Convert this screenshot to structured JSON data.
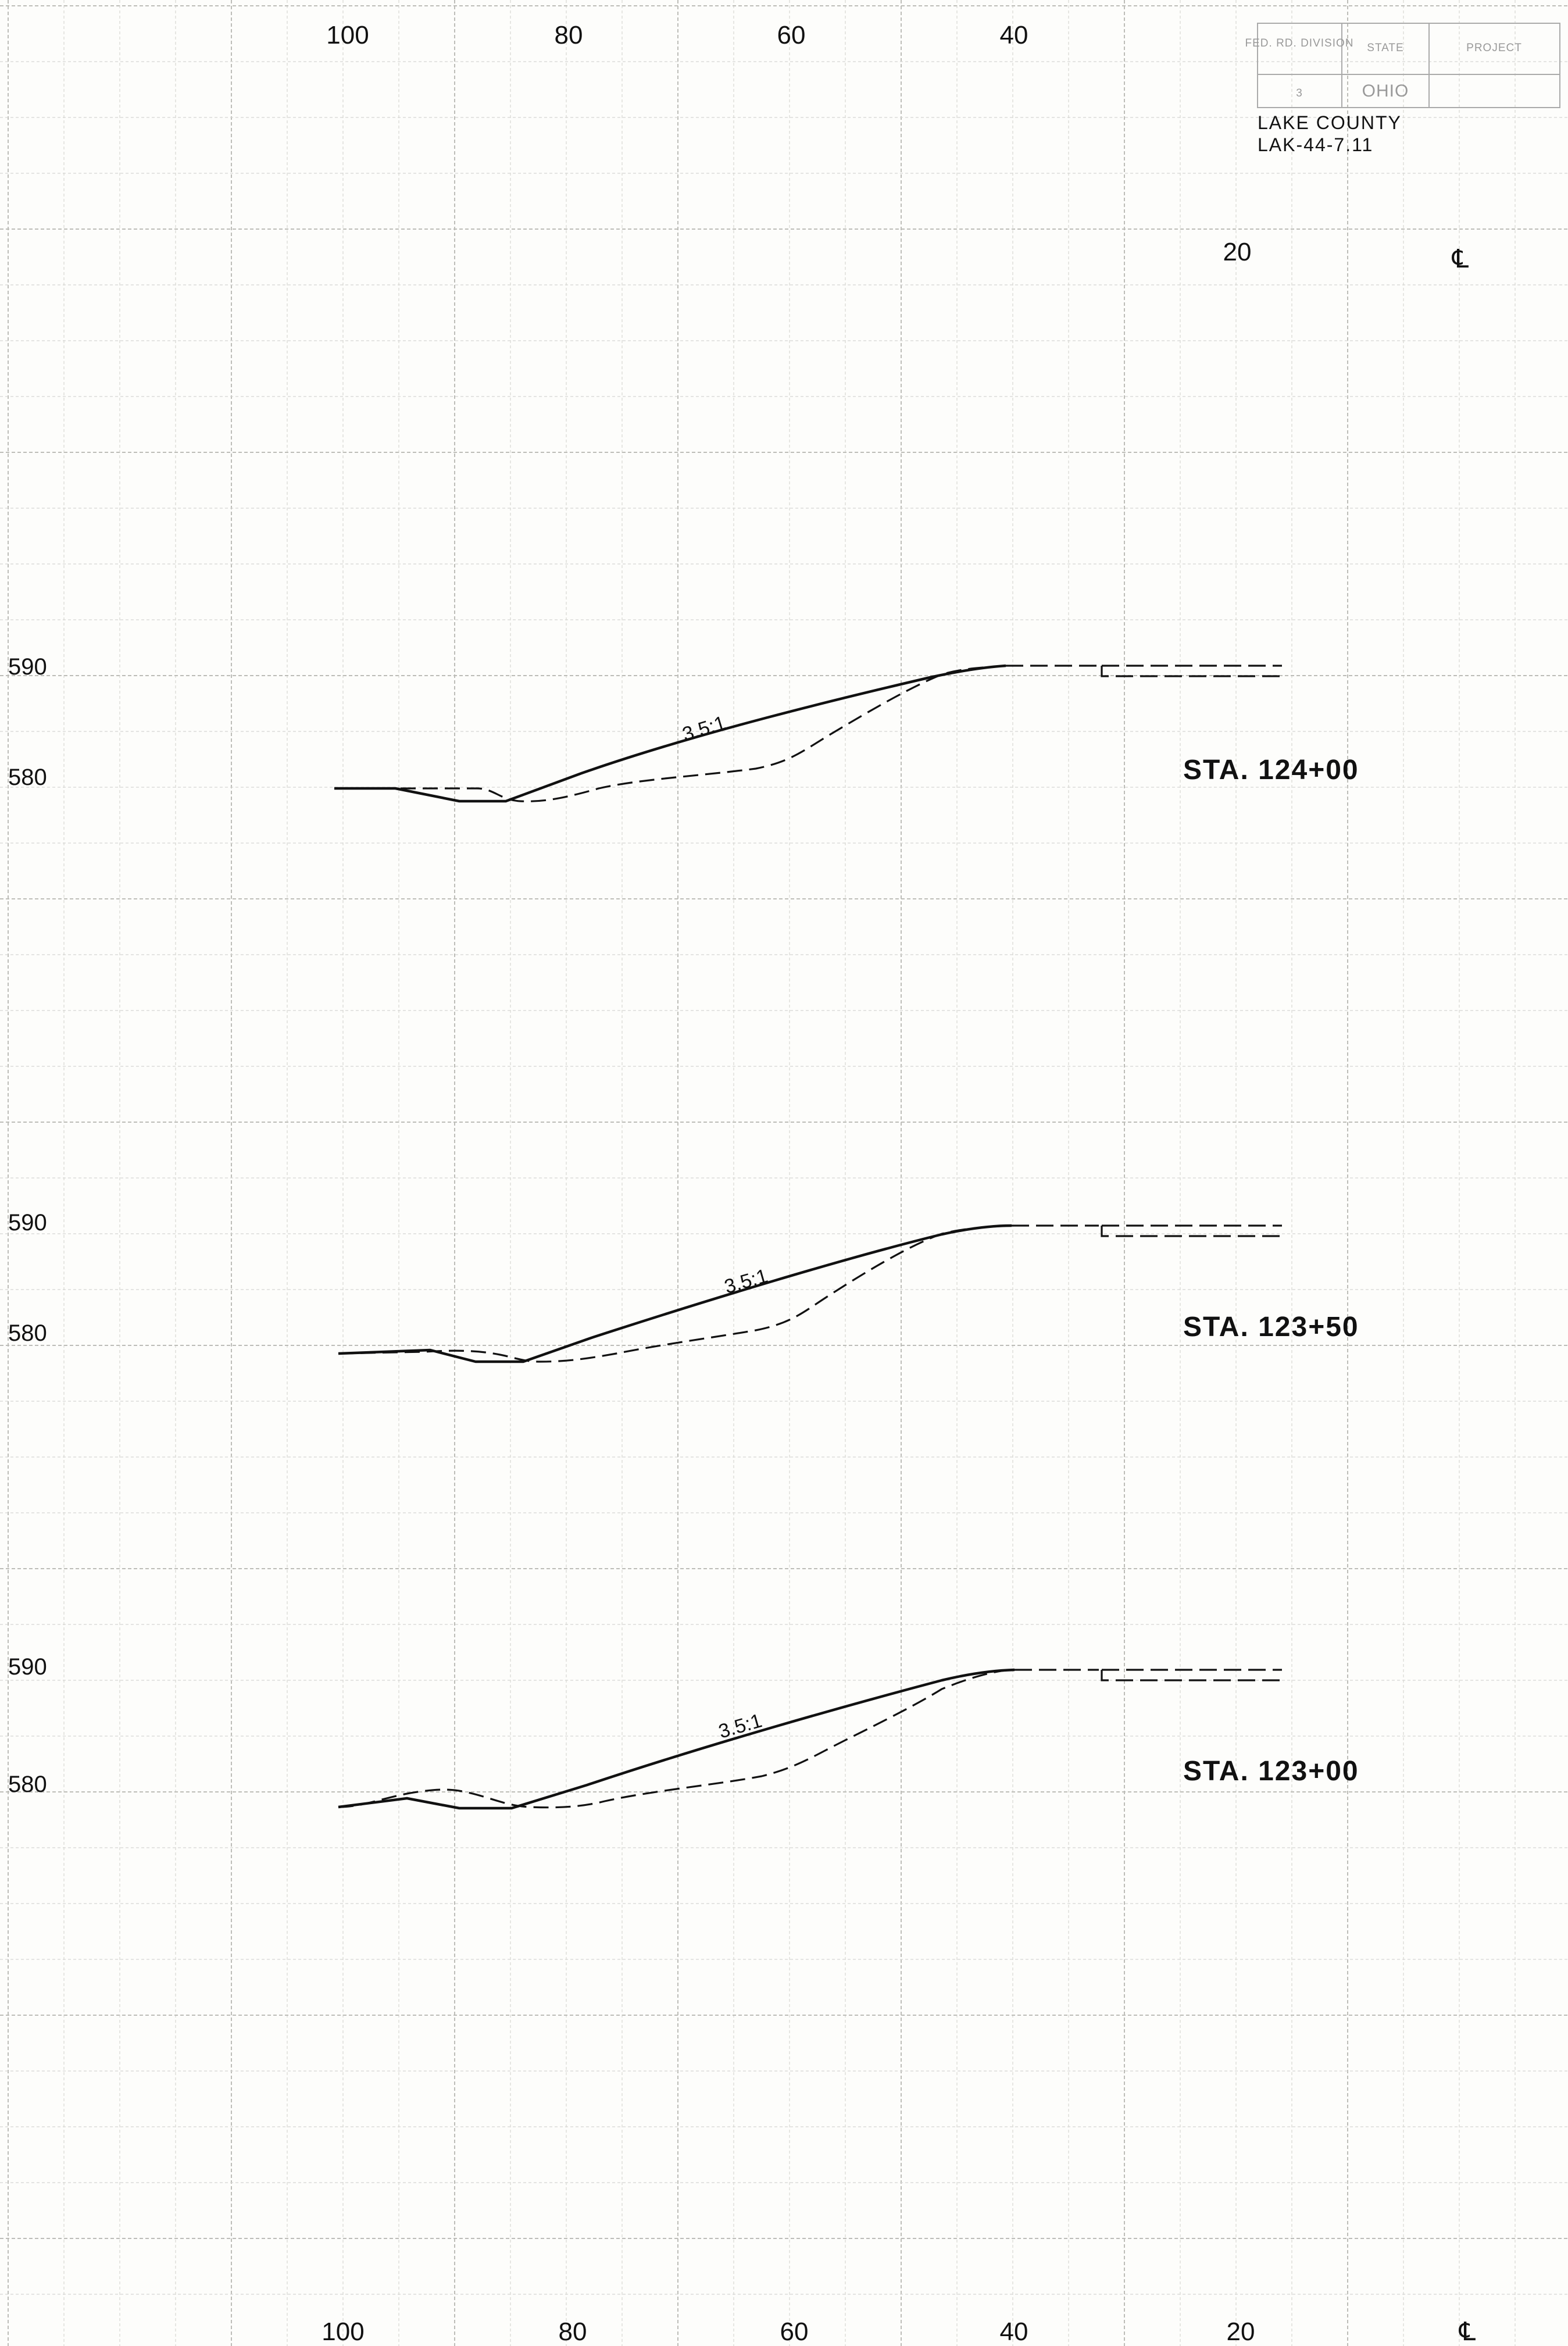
{
  "title_block": {
    "headers": [
      "FED. RD. DIVISION",
      "STATE",
      "PROJECT"
    ],
    "values": [
      "3",
      "OHIO",
      ""
    ]
  },
  "county": "LAKE COUNTY",
  "route": "LAK-44-7.11",
  "top_axis_labels": [
    "100",
    "80",
    "60",
    "40"
  ],
  "second_axis_labels": [
    "20",
    "℄"
  ],
  "bottom_axis_labels": [
    "100",
    "80",
    "60",
    "40",
    "20",
    "℄"
  ],
  "slope_label": "3.5:1",
  "sections": [
    {
      "station": "STA. 124+00",
      "elevations": [
        "590",
        "580"
      ]
    },
    {
      "station": "STA. 123+50",
      "elevations": [
        "590",
        "580"
      ]
    },
    {
      "station": "STA. 123+00",
      "elevations": [
        "590",
        "580"
      ]
    }
  ],
  "legend": {
    "proposed": "solid line",
    "existing": "dashed line"
  },
  "colors": {
    "ink": "#111111",
    "grid": "#cfcfcb",
    "paper": "#fdfdfb"
  }
}
